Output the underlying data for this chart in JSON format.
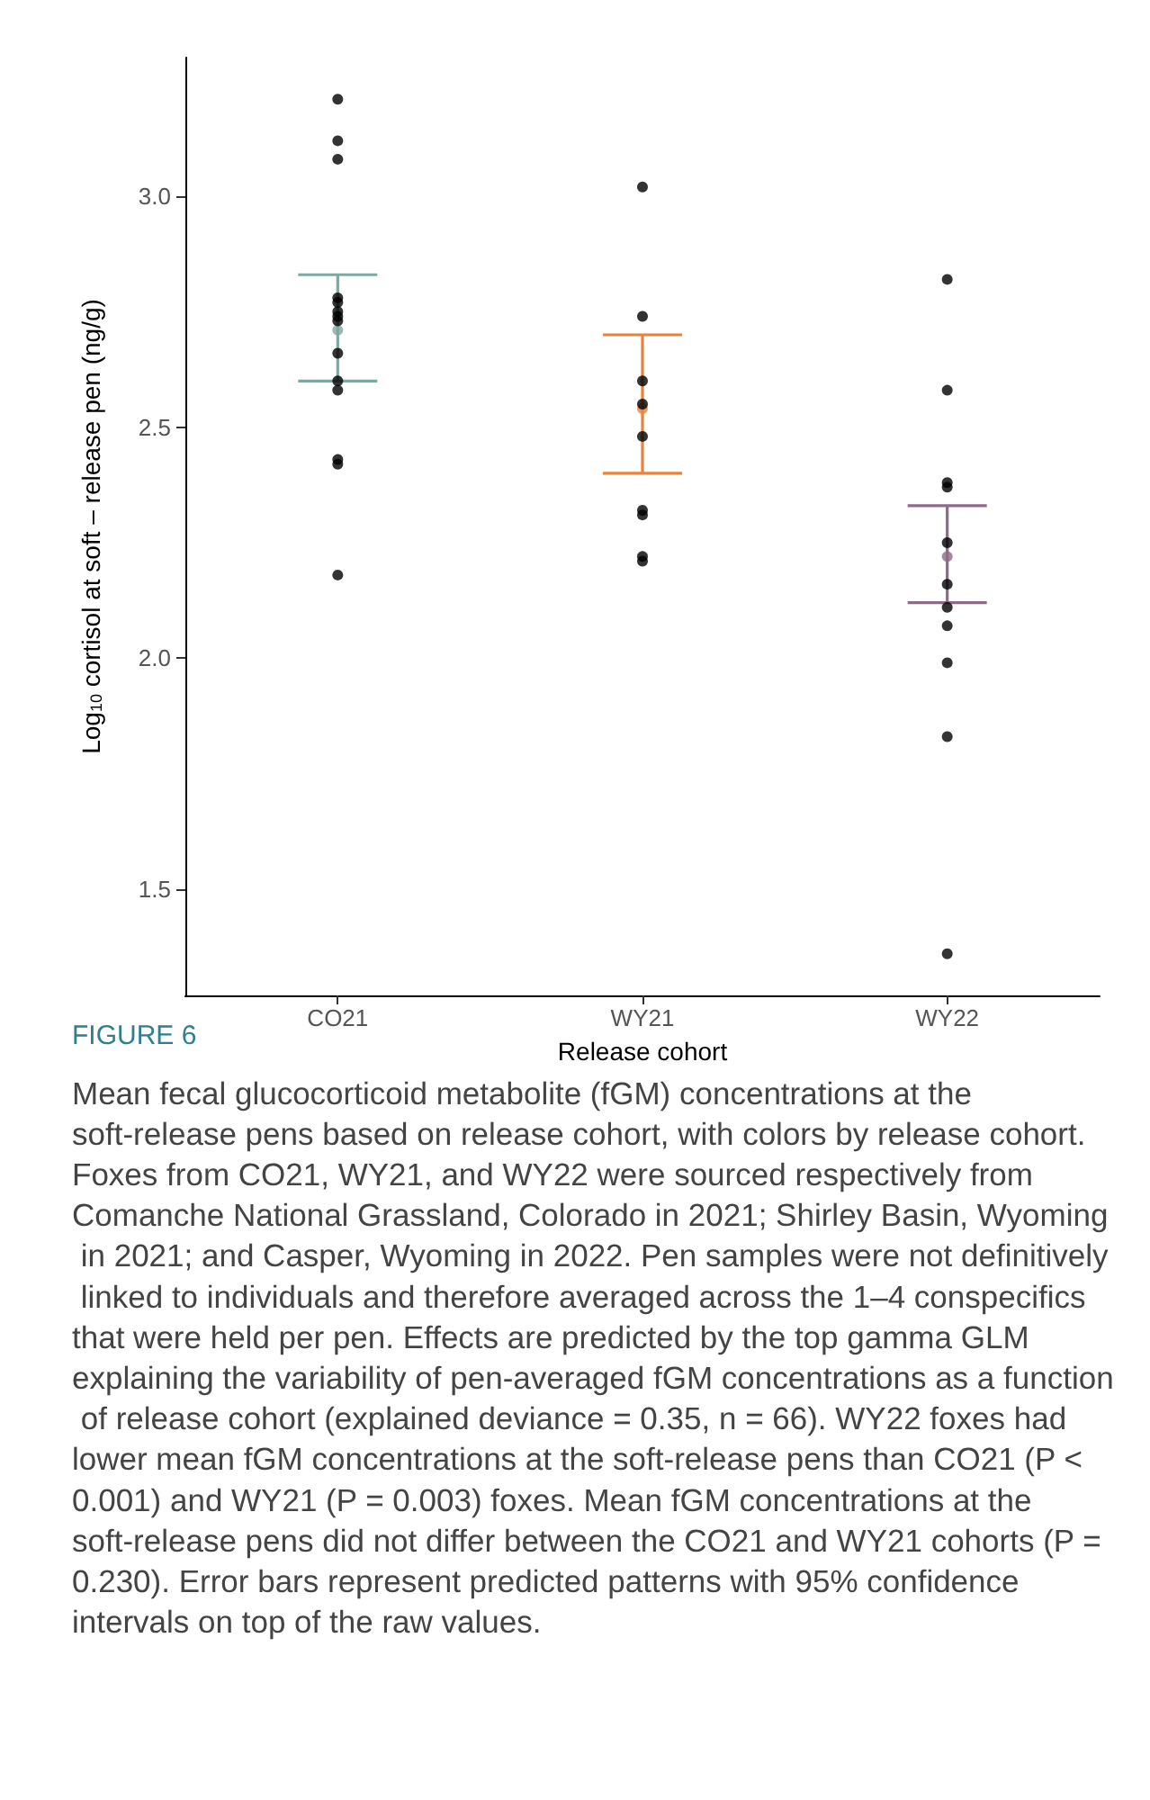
{
  "chart_data": {
    "type": "scatter",
    "title": "FIGURE 6",
    "xlabel": "Release cohort",
    "ylabel": "Log$_{10}$ cortisol at soft – release pen (ng/g)",
    "categories": [
      "CO21",
      "WY21",
      "WY22"
    ],
    "ylim": [
      1.27,
      3.3
    ],
    "yticks": [
      {
        "value": 1.5,
        "label": "1.5"
      },
      {
        "value": 2.0,
        "label": "2.0"
      },
      {
        "value": 2.5,
        "label": "2.5"
      },
      {
        "value": 3.0,
        "label": "3.0"
      }
    ],
    "grid": false,
    "marker": "circle",
    "series": [
      {
        "color": "#000000",
        "x": [
          "CO21",
          "CO21",
          "CO21",
          "CO21",
          "CO21",
          "CO21",
          "CO21",
          "CO21",
          "CO21",
          "CO21",
          "CO21",
          "CO21",
          "CO21",
          "CO21",
          "WY21",
          "WY21",
          "WY21",
          "WY21",
          "WY21",
          "WY21",
          "WY21",
          "WY21",
          "WY21",
          "WY22",
          "WY22",
          "WY22",
          "WY22",
          "WY22",
          "WY22",
          "WY22",
          "WY22",
          "WY22",
          "WY22",
          "WY22"
        ],
        "values": [
          3.21,
          3.12,
          3.08,
          2.78,
          2.77,
          2.75,
          2.74,
          2.73,
          2.66,
          2.6,
          2.58,
          2.43,
          2.42,
          2.18,
          3.02,
          2.74,
          2.6,
          2.55,
          2.48,
          2.32,
          2.31,
          2.22,
          2.21,
          2.82,
          2.58,
          2.38,
          2.37,
          2.25,
          2.16,
          2.11,
          2.07,
          1.99,
          1.83,
          1.36
        ]
      },
      {
        "colors": [
          "#7fa8a0",
          "#e8833a",
          "#8e6a86"
        ],
        "values": [
          2.71,
          2.54,
          2.22
        ],
        "errors": [
          [
            2.6,
            2.83
          ],
          [
            2.4,
            2.7
          ],
          [
            2.12,
            2.33
          ]
        ]
      }
    ],
    "annotations": [
      "Mean fecal glucocorticoid metabolite (fGM) concentrations at the soft-release pens based on release cohort, with colors by release cohort. Foxes from CO21, WY21, and WY22 were sourced respectively from Comanche National Grassland, Colorado in 2021; Shirley Basin, Wyoming in 2021; and Casper, Wyoming in 2022. Pen samples were not definitively linked to individuals and therefore averaged across the 1–4 conspecifics that were held per pen. Effects are predicted by the top gamma GLM explaining the variability of pen-averaged fGM concentrations as a function of release cohort (explained deviance = 0.35, n = 66). WY22 foxes had lower mean fGM concentrations at the soft-release pens than CO21 (P < 0.001) and WY21 (P = 0.003) foxes. Mean fGM concentrations at the soft-release pens did not differ between the CO21 and WY21 cohorts (P = 0.230). Error bars represent predicted patterns with 95% confidence intervals on top of the raw values."
    ]
  }
}
